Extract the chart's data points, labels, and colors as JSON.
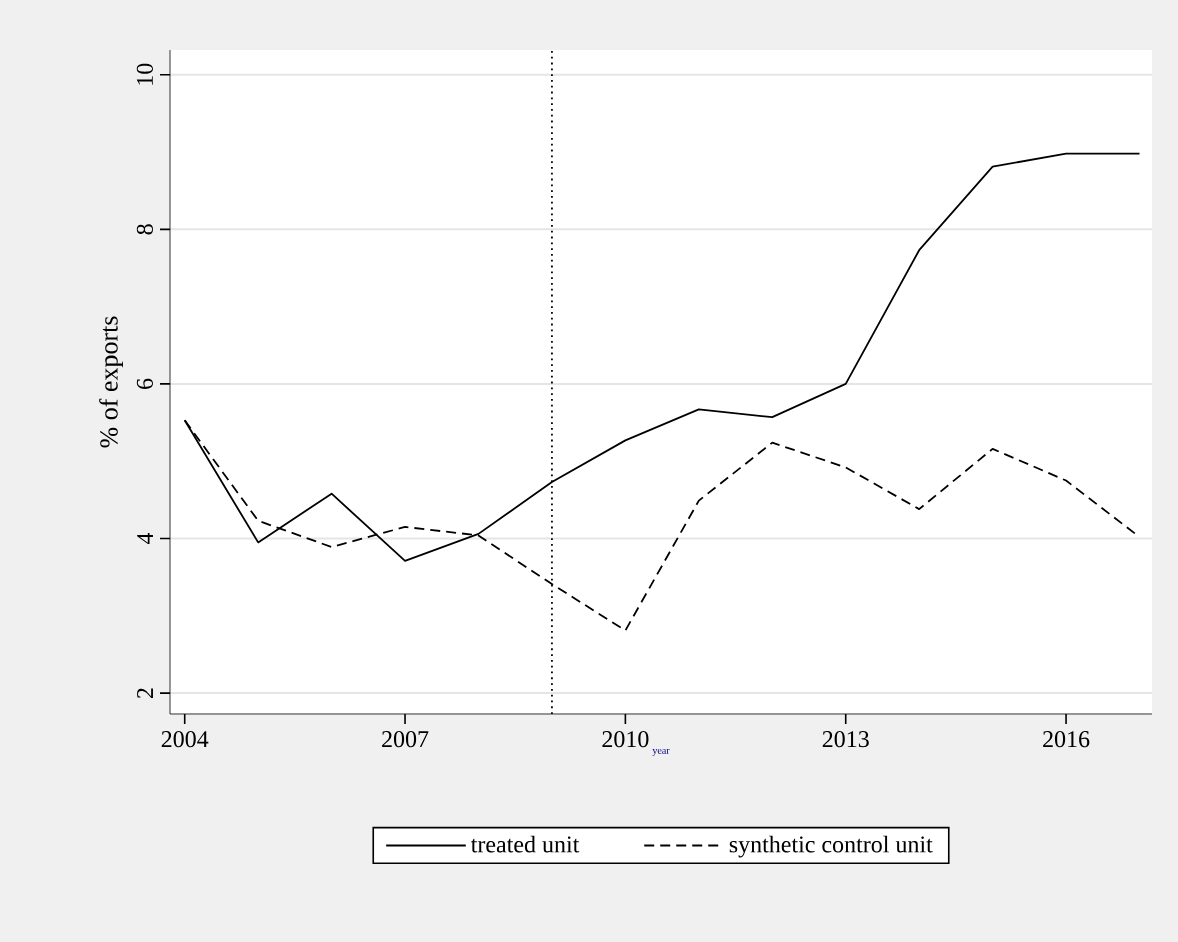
{
  "chart_data": {
    "type": "line",
    "xlabel": "year",
    "ylabel": "% of exports",
    "x": [
      2004,
      2005,
      2006,
      2007,
      2008,
      2009,
      2010,
      2011,
      2012,
      2013,
      2014,
      2015,
      2016,
      2017
    ],
    "series": [
      {
        "name": "treated unit",
        "color": "#000000",
        "line_style": "solid",
        "values": [
          5.53,
          3.95,
          4.58,
          3.71,
          4.06,
          4.73,
          5.27,
          5.67,
          5.57,
          6.0,
          7.73,
          8.81,
          8.98,
          8.98
        ]
      },
      {
        "name": "synthetic control unit",
        "color": "#000000",
        "line_style": "dashed",
        "values": [
          5.53,
          4.23,
          3.89,
          4.15,
          4.04,
          3.41,
          2.81,
          4.49,
          5.24,
          4.92,
          4.38,
          5.16,
          4.75,
          4.02
        ]
      }
    ],
    "xlim": [
      2003.8,
      2017.17
    ],
    "ylim": [
      1.73,
      10.32
    ],
    "xticks": [
      2004,
      2007,
      2010,
      2013,
      2016
    ],
    "yticks": [
      2,
      4,
      6,
      8,
      10
    ],
    "ref_lines": [
      {
        "axis": "x",
        "value": 2009,
        "color": "#000000",
        "line_style": "dotted"
      }
    ],
    "grid": "y",
    "legend": "bottom"
  }
}
